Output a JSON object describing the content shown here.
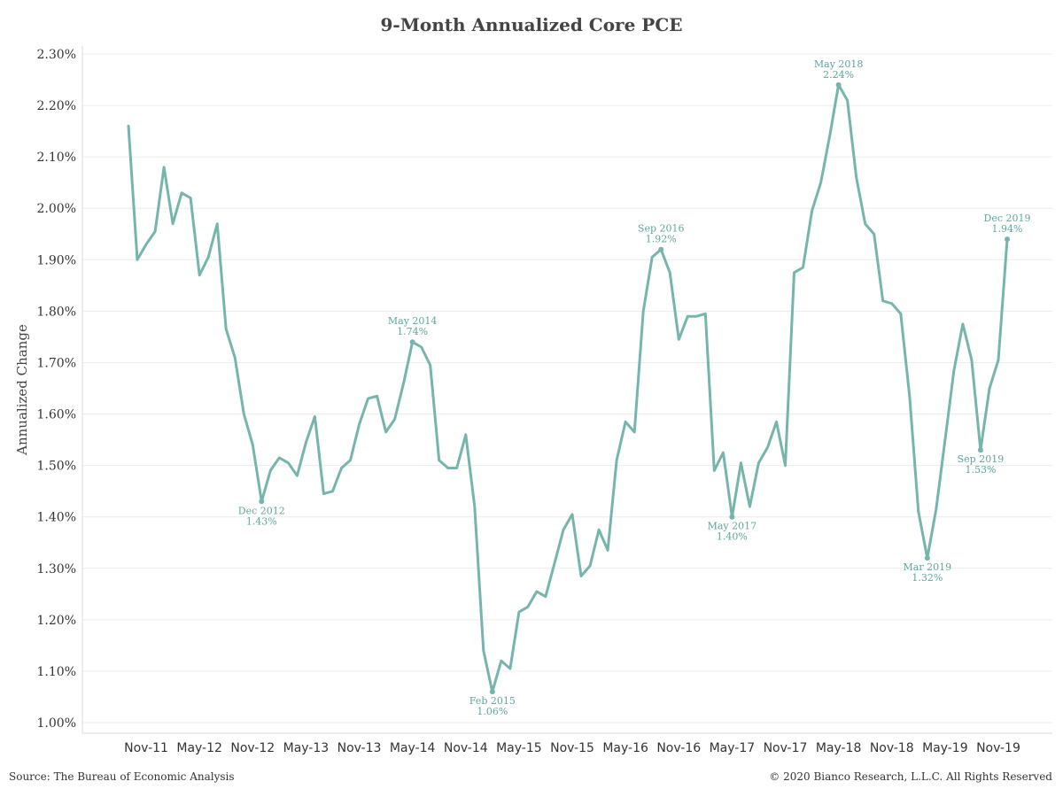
{
  "title": "9-Month Annualized Core PCE",
  "footer": {
    "source": "Source: The Bureau of Economic Analysis",
    "copyright": "© 2020 Bianco Research, L.L.C. All Rights Reserved"
  },
  "colors": {
    "line": "#76b5ac",
    "annotation": "#5ca79c",
    "grid": "#ececec",
    "text": "#333333"
  },
  "chart_data": {
    "type": "line",
    "title": "9-Month Annualized Core PCE",
    "ylabel": "Annualized Change",
    "xlabel": "",
    "ylim": [
      1.0,
      2.3
    ],
    "yticks": [
      1.0,
      1.1,
      1.2,
      1.3,
      1.4,
      1.5,
      1.6,
      1.7,
      1.8,
      1.9,
      2.0,
      2.1,
      2.2,
      2.3
    ],
    "ytick_labels": [
      "1.00%",
      "1.10%",
      "1.20%",
      "1.30%",
      "1.40%",
      "1.50%",
      "1.60%",
      "1.70%",
      "1.80%",
      "1.90%",
      "2.00%",
      "2.10%",
      "2.20%",
      "2.30%"
    ],
    "xtick_labels": [
      "Nov-11",
      "May-12",
      "Nov-12",
      "May-13",
      "Nov-13",
      "May-14",
      "Nov-14",
      "May-15",
      "Nov-15",
      "May-16",
      "Nov-16",
      "May-17",
      "Nov-17",
      "May-18",
      "Nov-18",
      "May-19",
      "Nov-19"
    ],
    "xrange": [
      "2011-09",
      "2019-12"
    ],
    "grid": true,
    "series": [
      {
        "x": [
          "2011-09",
          "2011-10",
          "2011-11",
          "2011-12",
          "2012-01",
          "2012-02",
          "2012-03",
          "2012-04",
          "2012-05",
          "2012-06",
          "2012-07",
          "2012-08",
          "2012-09",
          "2012-10",
          "2012-11",
          "2012-12",
          "2013-01",
          "2013-02",
          "2013-03",
          "2013-04",
          "2013-05",
          "2013-06",
          "2013-07",
          "2013-08",
          "2013-09",
          "2013-10",
          "2013-11",
          "2013-12",
          "2014-01",
          "2014-02",
          "2014-03",
          "2014-04",
          "2014-05",
          "2014-06",
          "2014-07",
          "2014-08",
          "2014-09",
          "2014-10",
          "2014-11",
          "2014-12",
          "2015-01",
          "2015-02",
          "2015-03",
          "2015-04",
          "2015-05",
          "2015-06",
          "2015-07",
          "2015-08",
          "2015-09",
          "2015-10",
          "2015-11",
          "2015-12",
          "2016-01",
          "2016-02",
          "2016-03",
          "2016-04",
          "2016-05",
          "2016-06",
          "2016-07",
          "2016-08",
          "2016-09",
          "2016-10",
          "2016-11",
          "2016-12",
          "2017-01",
          "2017-02",
          "2017-03",
          "2017-04",
          "2017-05",
          "2017-06",
          "2017-07",
          "2017-08",
          "2017-09",
          "2017-10",
          "2017-11",
          "2017-12",
          "2018-01",
          "2018-02",
          "2018-03",
          "2018-04",
          "2018-05",
          "2018-06",
          "2018-07",
          "2018-08",
          "2018-09",
          "2018-10",
          "2018-11",
          "2018-12",
          "2019-01",
          "2019-02",
          "2019-03",
          "2019-04",
          "2019-05",
          "2019-06",
          "2019-07",
          "2019-08",
          "2019-09",
          "2019-10",
          "2019-11",
          "2019-12"
        ],
        "values": [
          2.16,
          1.9,
          1.93,
          1.955,
          2.08,
          1.97,
          2.03,
          2.02,
          1.87,
          1.905,
          1.97,
          1.765,
          1.71,
          1.6,
          1.54,
          1.43,
          1.49,
          1.515,
          1.505,
          1.48,
          1.545,
          1.595,
          1.445,
          1.45,
          1.495,
          1.51,
          1.58,
          1.63,
          1.635,
          1.565,
          1.59,
          1.66,
          1.74,
          1.73,
          1.695,
          1.51,
          1.495,
          1.495,
          1.56,
          1.42,
          1.14,
          1.06,
          1.12,
          1.105,
          1.215,
          1.225,
          1.255,
          1.245,
          1.31,
          1.375,
          1.405,
          1.285,
          1.305,
          1.375,
          1.335,
          1.51,
          1.585,
          1.565,
          1.8,
          1.905,
          1.92,
          1.875,
          1.745,
          1.79,
          1.79,
          1.795,
          1.49,
          1.525,
          1.4,
          1.505,
          1.42,
          1.505,
          1.535,
          1.585,
          1.5,
          1.875,
          1.885,
          1.995,
          2.05,
          2.14,
          2.24,
          2.21,
          2.06,
          1.97,
          1.95,
          1.82,
          1.815,
          1.795,
          1.635,
          1.41,
          1.32,
          1.415,
          1.55,
          1.685,
          1.775,
          1.705,
          1.53,
          1.65,
          1.705,
          1.94
        ]
      }
    ],
    "annotations": [
      {
        "x": "2012-12",
        "date": "Dec 2012",
        "value": "1.43%",
        "y": 1.43,
        "pos": "below"
      },
      {
        "x": "2014-05",
        "date": "May 2014",
        "value": "1.74%",
        "y": 1.74,
        "pos": "above"
      },
      {
        "x": "2015-02",
        "date": "Feb 2015",
        "value": "1.06%",
        "y": 1.06,
        "pos": "below"
      },
      {
        "x": "2016-09",
        "date": "Sep 2016",
        "value": "1.92%",
        "y": 1.92,
        "pos": "above"
      },
      {
        "x": "2017-05",
        "date": "May 2017",
        "value": "1.40%",
        "y": 1.4,
        "pos": "below"
      },
      {
        "x": "2018-05",
        "date": "May 2018",
        "value": "2.24%",
        "y": 2.24,
        "pos": "above"
      },
      {
        "x": "2019-03",
        "date": "Mar 2019",
        "value": "1.32%",
        "y": 1.32,
        "pos": "below"
      },
      {
        "x": "2019-09",
        "date": "Sep 2019",
        "value": "1.53%",
        "y": 1.53,
        "pos": "below"
      },
      {
        "x": "2019-12",
        "date": "Dec 2019",
        "value": "1.94%",
        "y": 1.94,
        "pos": "above"
      }
    ]
  }
}
